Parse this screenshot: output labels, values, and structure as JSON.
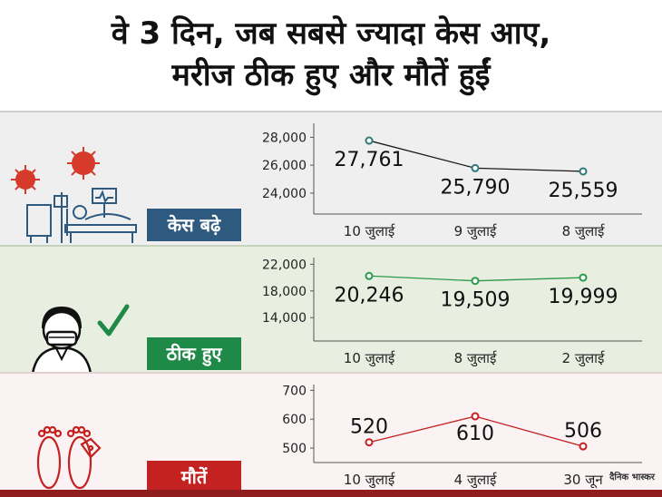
{
  "title_line1": "वे 3 दिन, जब सबसे ज्यादा केस आए,",
  "title_line2": "मरीज ठीक हुए और मौतें हुईं",
  "watermark": "दैनिक भास्कर",
  "colors": {
    "cases": "#2e5a80",
    "recovered": "#1f8a48",
    "deaths": "#c42121",
    "cases_line": "#1a1a1a",
    "cases_marker": "#2e7a7a",
    "recovered_line": "#2b9a4b",
    "deaths_line": "#c42121"
  },
  "panels": {
    "cases": {
      "label": "केस बढ़े",
      "icon": "hospital-bed-virus-icon"
    },
    "recovered": {
      "label": "ठीक हुए",
      "icon": "masked-person-checkmark-icon"
    },
    "deaths": {
      "label": "मौतें",
      "icon": "feet-toe-tag-icon"
    }
  },
  "chart_data": [
    {
      "type": "line",
      "categories": [
        "10 जुलाई",
        "9 जुलाई",
        "8 जुलाई"
      ],
      "values": [
        27761,
        25790,
        25559
      ],
      "data_labels": [
        "27,761",
        "25,790",
        "25,559"
      ],
      "yticks": [
        "28,000",
        "26,000",
        "24,000"
      ],
      "ytick_values": [
        28000,
        26000,
        24000
      ],
      "ylim": [
        22500,
        29000
      ]
    },
    {
      "type": "line",
      "categories": [
        "10 जुलाई",
        "8 जुलाई",
        "2 जुलाई"
      ],
      "values": [
        20246,
        19509,
        19999
      ],
      "data_labels": [
        "20,246",
        "19,509",
        "19,999"
      ],
      "yticks": [
        "22,000",
        "18,000",
        "14,000"
      ],
      "ytick_values": [
        22000,
        18000,
        14000
      ],
      "ylim": [
        10500,
        23000
      ]
    },
    {
      "type": "line",
      "categories": [
        "10 जुलाई",
        "4 जुलाई",
        "30 जून"
      ],
      "values": [
        520,
        610,
        506
      ],
      "data_labels": [
        "520",
        "610",
        "506"
      ],
      "yticks": [
        "700",
        "600",
        "500"
      ],
      "ytick_values": [
        700,
        600,
        500
      ],
      "ylim": [
        450,
        720
      ]
    }
  ]
}
